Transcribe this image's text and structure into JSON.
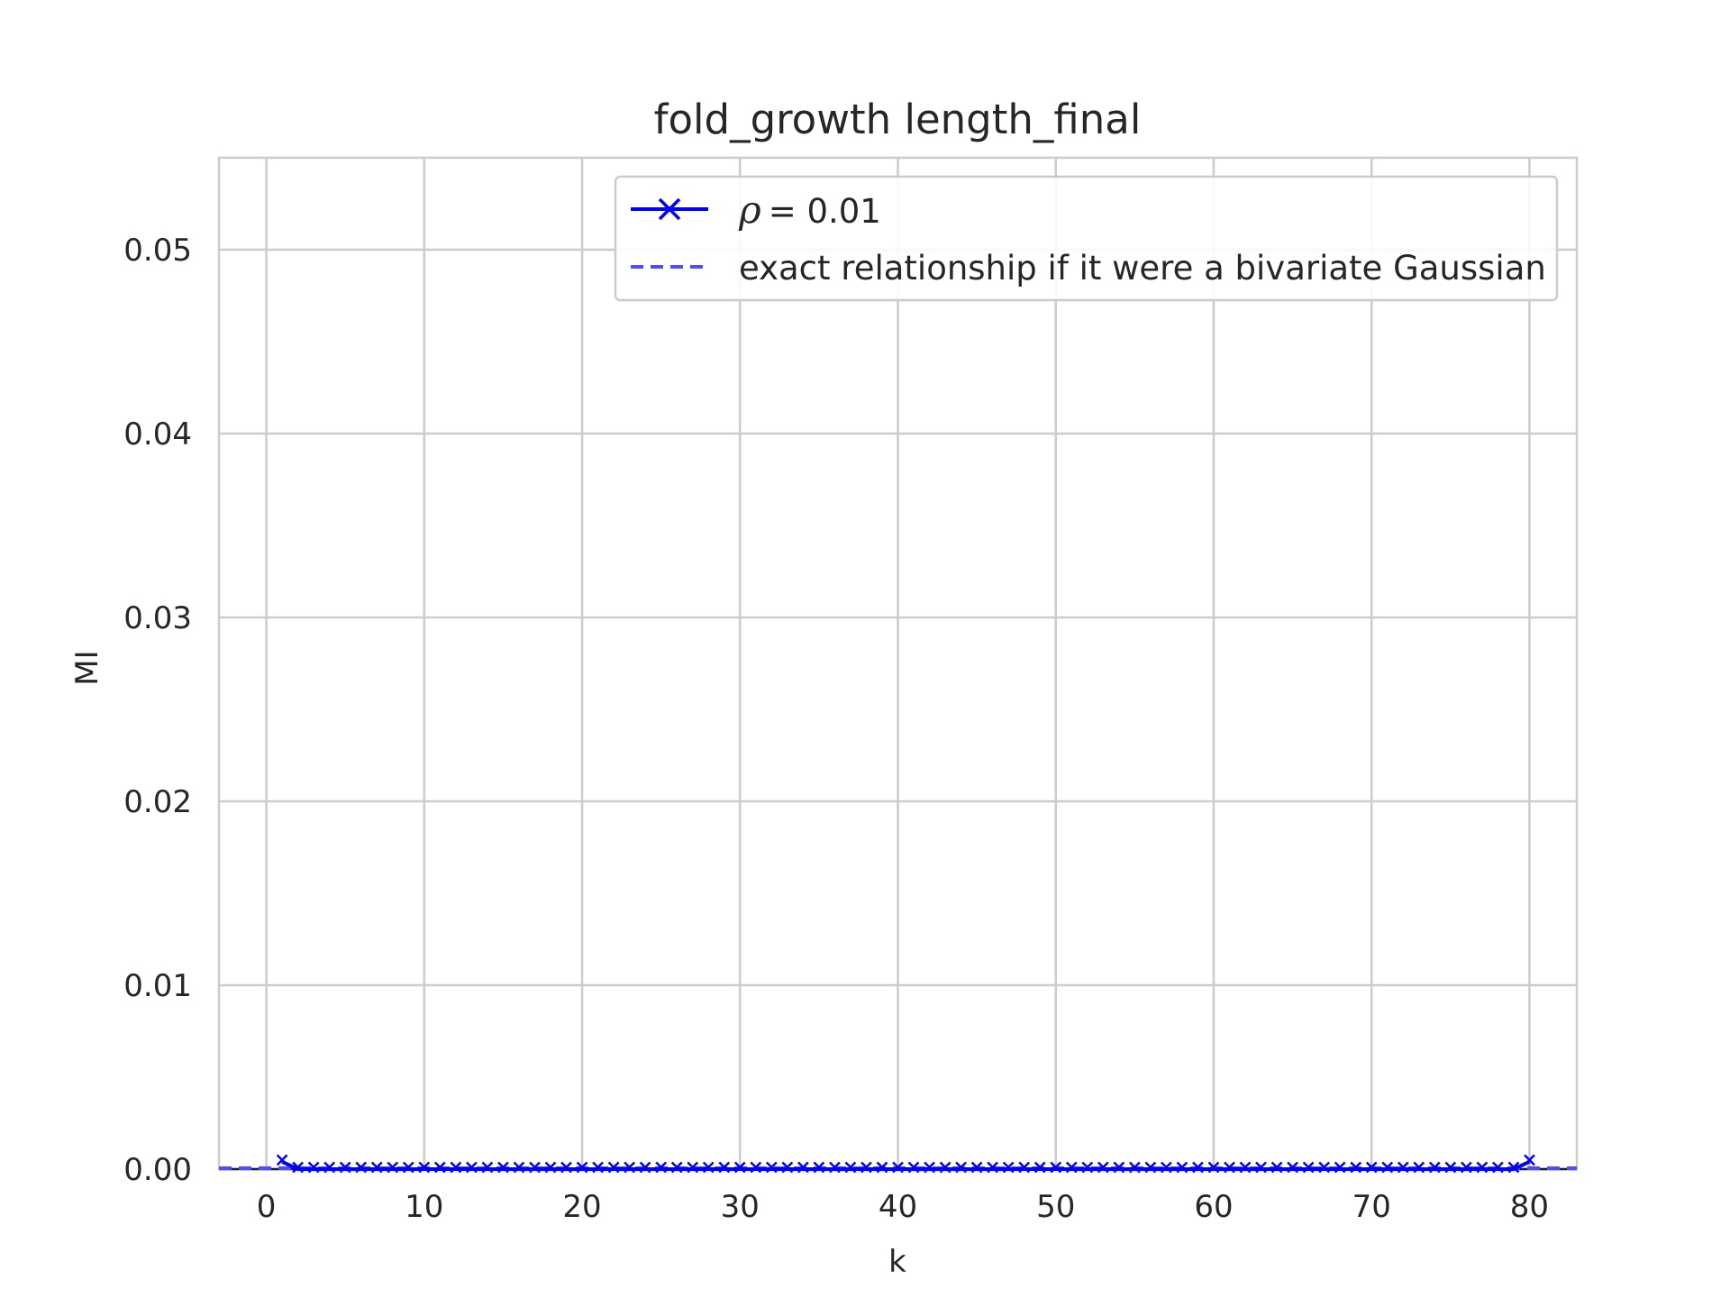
{
  "chart_data": {
    "type": "line",
    "title": "fold_growth length_final",
    "xlabel": "k",
    "ylabel": "MI",
    "xlim": [
      -3,
      83
    ],
    "ylim": [
      0,
      0.055
    ],
    "xticks": [
      0,
      10,
      20,
      30,
      40,
      50,
      60,
      70,
      80
    ],
    "yticks": [
      0.0,
      0.01,
      0.02,
      0.03,
      0.04,
      0.05
    ],
    "ytick_labels": [
      "0.00",
      "0.01",
      "0.02",
      "0.03",
      "0.04",
      "0.05"
    ],
    "grid": true,
    "legend_position": "top-right",
    "series": [
      {
        "name": "ρ = 0.01",
        "style": "solid",
        "marker": "x",
        "color": "#0000ff",
        "x": [
          1,
          2,
          3,
          4,
          5,
          6,
          7,
          8,
          9,
          10,
          11,
          12,
          13,
          14,
          15,
          16,
          17,
          18,
          19,
          20,
          21,
          22,
          23,
          24,
          25,
          26,
          27,
          28,
          29,
          30,
          31,
          32,
          33,
          34,
          35,
          36,
          37,
          38,
          39,
          40,
          41,
          42,
          43,
          44,
          45,
          46,
          47,
          48,
          49,
          50,
          51,
          52,
          53,
          54,
          55,
          56,
          57,
          58,
          59,
          60,
          61,
          62,
          63,
          64,
          65,
          66,
          67,
          68,
          69,
          70,
          71,
          72,
          73,
          74,
          75,
          76,
          77,
          78,
          79,
          80
        ],
        "y": [
          0.0004,
          0,
          0,
          0,
          0,
          0,
          0,
          0,
          0,
          0,
          0,
          0,
          0,
          0,
          0,
          0,
          0,
          0,
          0,
          0,
          0,
          0,
          0,
          0,
          0,
          0,
          0,
          0,
          0,
          0,
          0,
          0,
          0,
          0,
          0,
          0,
          0,
          0,
          0,
          0,
          0,
          0,
          0,
          0,
          0,
          0,
          0,
          0,
          0,
          0,
          0,
          0,
          0,
          0,
          0,
          0,
          0,
          0,
          0,
          0,
          0,
          0,
          0,
          0,
          0,
          0,
          0,
          0,
          0,
          0,
          0,
          0,
          0,
          0,
          0,
          0,
          0,
          0,
          0,
          0.0004
        ]
      },
      {
        "name": "exact relationship if it were a bivariate Gaussian",
        "style": "dashed",
        "color": "#4d4dff",
        "y_constant": 5e-05
      }
    ]
  },
  "legend": {
    "rho_symbol": "ρ",
    "rho_eq": "= 0.01",
    "exact_label": "exact relationship if it were a bivariate Gaussian"
  }
}
